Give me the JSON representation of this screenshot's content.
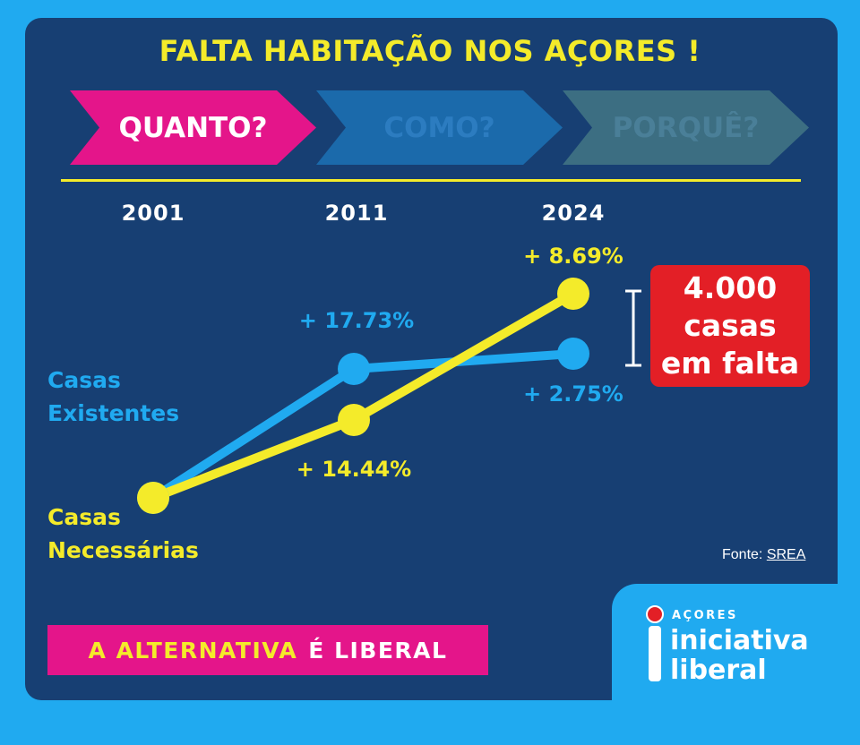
{
  "title": "FALTA HABITAÇÃO NOS AÇORES !",
  "steps": [
    "QUANTO?",
    "COMO?",
    "PORQUÊ?"
  ],
  "shortage": {
    "line1": "4.000",
    "line2": "casas",
    "line3": "em falta"
  },
  "source": {
    "prefix": "Fonte:",
    "link": "SREA"
  },
  "slogan": {
    "part1": "A ALTERNATIVA",
    "part2": "É LIBERAL"
  },
  "logo": {
    "region": "AÇORES",
    "name_line1": "iniciativa",
    "name_line2": "liberal"
  },
  "colors": {
    "background_border": "#20aaf0",
    "panel": "#173f73",
    "yellow": "#f4eb2a",
    "blue": "#20aaf0",
    "magenta": "#e4158a",
    "red": "#e31f26"
  },
  "chart_data": {
    "type": "line",
    "categories": [
      "2001",
      "2011",
      "2024"
    ],
    "series": [
      {
        "name": "Casas Existentes",
        "name_lines": [
          "Casas",
          "Existentes"
        ],
        "color": "#20aaf0",
        "growth_labels": [
          "",
          "+ 17.73%",
          "+ 2.75%"
        ]
      },
      {
        "name": "Casas Necessárias",
        "name_lines": [
          "Casas",
          "Necessárias"
        ],
        "color": "#f4eb2a",
        "growth_labels": [
          "",
          "+ 14.44%",
          "+ 8.69%"
        ]
      }
    ],
    "index_values": {
      "Casas Existentes": [
        100,
        117.73,
        120.97
      ],
      "Casas Necessárias": [
        100,
        114.44,
        124.38
      ]
    },
    "gap_annotation": "4.000 casas em falta",
    "grid": false,
    "y_axis_shown": false
  }
}
